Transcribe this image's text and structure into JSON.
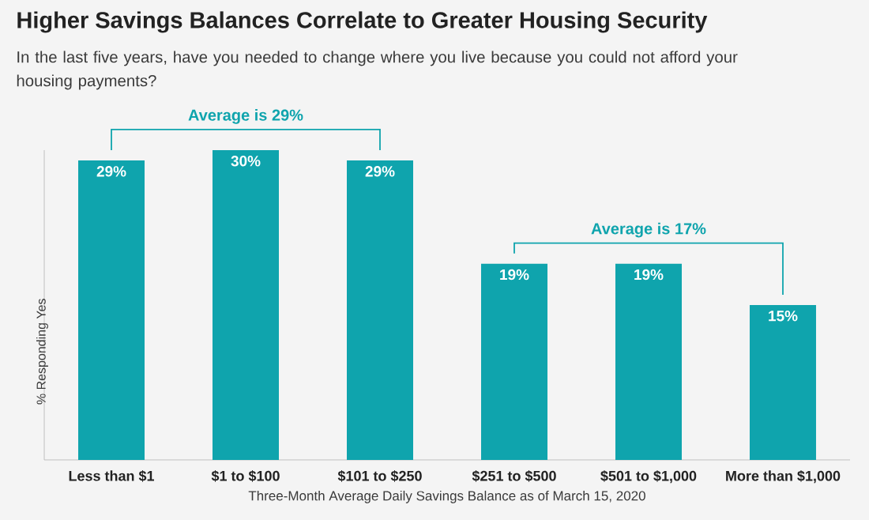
{
  "chart_data": {
    "type": "bar",
    "title": "Higher Savings Balances Correlate to Greater Housing Security",
    "subtitle": "In the last five years, have you needed to change where you live because you could not afford your housing payments?",
    "xlabel": "Three-Month Average Daily Savings Balance as of March 15, 2020",
    "ylabel": "% Responding Yes",
    "categories": [
      "Less than $1",
      "$1 to $100",
      "$101 to $250",
      "$251 to $500",
      "$501 to $1,000",
      "More than $1,000"
    ],
    "values": [
      29,
      30,
      29,
      19,
      19,
      15
    ],
    "value_labels": [
      "29%",
      "30%",
      "29%",
      "19%",
      "19%",
      "15%"
    ],
    "color": "#0fa4ad",
    "annotations": [
      "Average is 29%",
      "Average is 17%"
    ]
  }
}
